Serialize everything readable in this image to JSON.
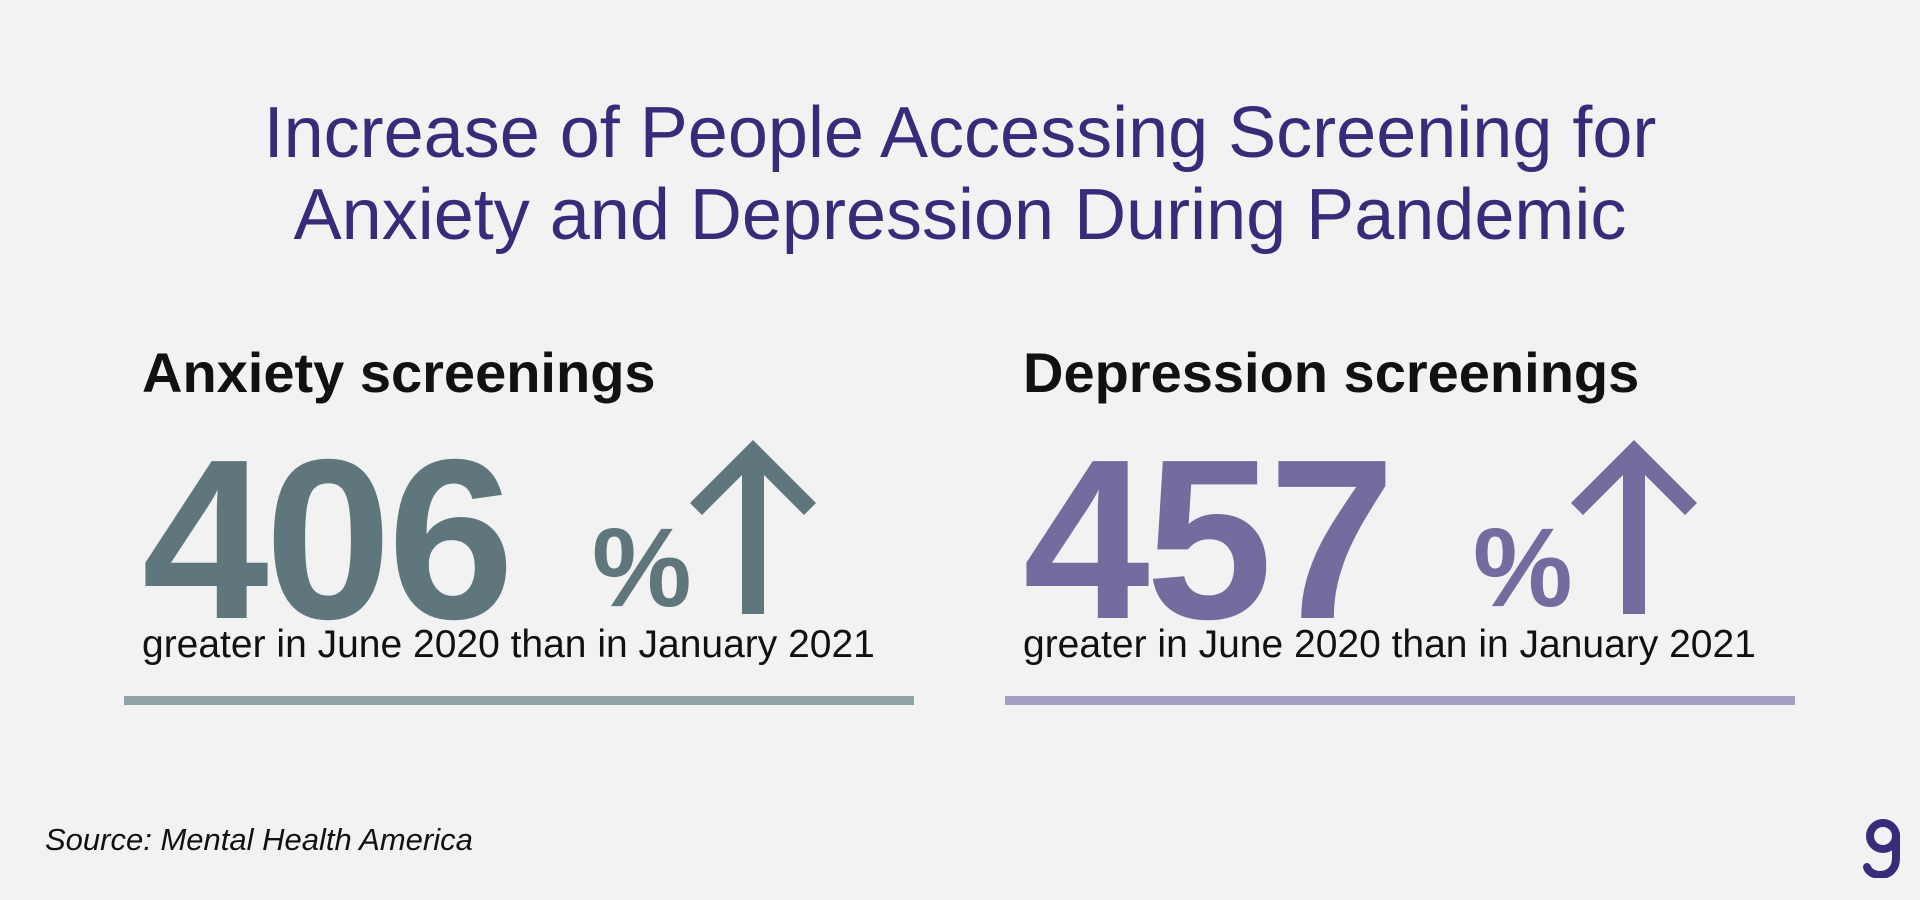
{
  "chart_data": {
    "type": "table",
    "title": "Increase of People Accessing Screening for Anxiety and Depression During Pandemic",
    "title_lines": [
      "Increase of People Accessing Screening for",
      "Anxiety and Depression During Pandemic"
    ],
    "stats": [
      {
        "label": "Anxiety screenings",
        "value": 406,
        "display_value": "406",
        "unit": "%",
        "direction": "up",
        "caption": "greater in June 2020 than in January 2021",
        "color": "#5f777c",
        "rule_color": "#8fa3a6"
      },
      {
        "label": "Depression screenings",
        "value": 457,
        "display_value": "457",
        "unit": "%",
        "direction": "up",
        "caption": "greater in June 2020 than in January 2021",
        "color": "#756b9e",
        "rule_color": "#a49ec2"
      }
    ],
    "source": "Source: Mental Health America"
  },
  "brand": {
    "logo_icon": "g-logo-icon",
    "color": "#3a2b7a"
  }
}
